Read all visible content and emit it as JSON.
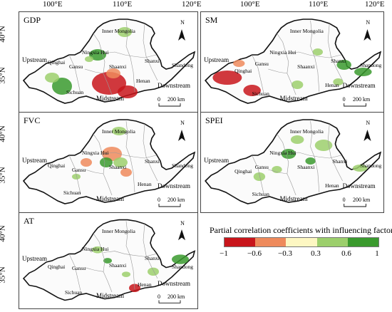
{
  "axes": {
    "top_ticks": [
      "100°E",
      "110°E",
      "120°E"
    ],
    "left_ticks": [
      "40°N",
      "35°N"
    ]
  },
  "panels": [
    {
      "title": "GDP",
      "key": "gdp"
    },
    {
      "title": "SM",
      "key": "sm"
    },
    {
      "title": "FVC",
      "key": "fvc"
    },
    {
      "title": "SPEI",
      "key": "spei"
    },
    {
      "title": "AT",
      "key": "at"
    }
  ],
  "places": {
    "inner_mongolia": "Inner Mongolia",
    "ningxia": "Ningxia Hui",
    "qinghai": "Qinghai",
    "gansu": "Gansu",
    "shaanxi": "Shaanxi",
    "shanxi": "Shanxi",
    "henan": "Henan",
    "shandong": "Shandong",
    "sichuan": "Sichuan"
  },
  "regions": {
    "upstream": "Upstream",
    "midstream": "Midstream",
    "downstream": "Downstream"
  },
  "north_arrow": "N",
  "scale_bar": {
    "zero": "0",
    "distance": "200 km"
  },
  "legend": {
    "title": "Partial correlation coefficients with influencing factors",
    "ticks": [
      "−1",
      "−0.6",
      "−0.3",
      "0.3",
      "0.6",
      "1"
    ],
    "colors": [
      "#c8151b",
      "#ee8a5c",
      "#fdf7c2",
      "#9ccf6c",
      "#3a9a2e"
    ]
  }
}
